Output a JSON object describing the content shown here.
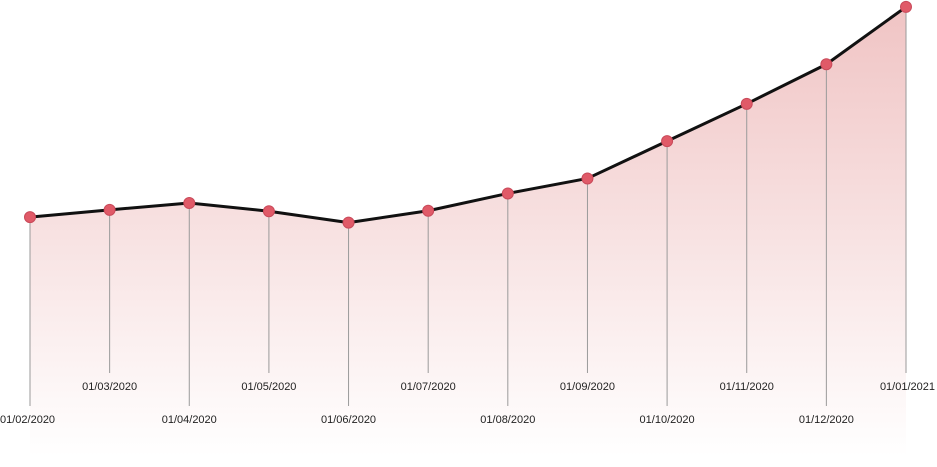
{
  "chart_data": {
    "type": "area",
    "title": "",
    "xlabel": "",
    "ylabel": "",
    "x": [
      "01/02/2020",
      "01/03/2020",
      "01/04/2020",
      "01/05/2020",
      "01/06/2020",
      "01/07/2020",
      "01/08/2020",
      "01/09/2020",
      "01/10/2020",
      "01/11/2020",
      "01/12/2020",
      "01/01/2021"
    ],
    "values": [
      53.6,
      55.2,
      56.7,
      54.9,
      52.4,
      55.0,
      58.8,
      62.1,
      70.3,
      78.5,
      87.2,
      99.8
    ],
    "ylim": [
      0,
      100
    ],
    "grid": false,
    "legend": "none",
    "colors": {
      "line": "#111111",
      "point": "#e05a68",
      "area_top": "#f0c4c4",
      "area_bottom": "#ffffff",
      "drop_line": "#9a9a9a"
    }
  }
}
